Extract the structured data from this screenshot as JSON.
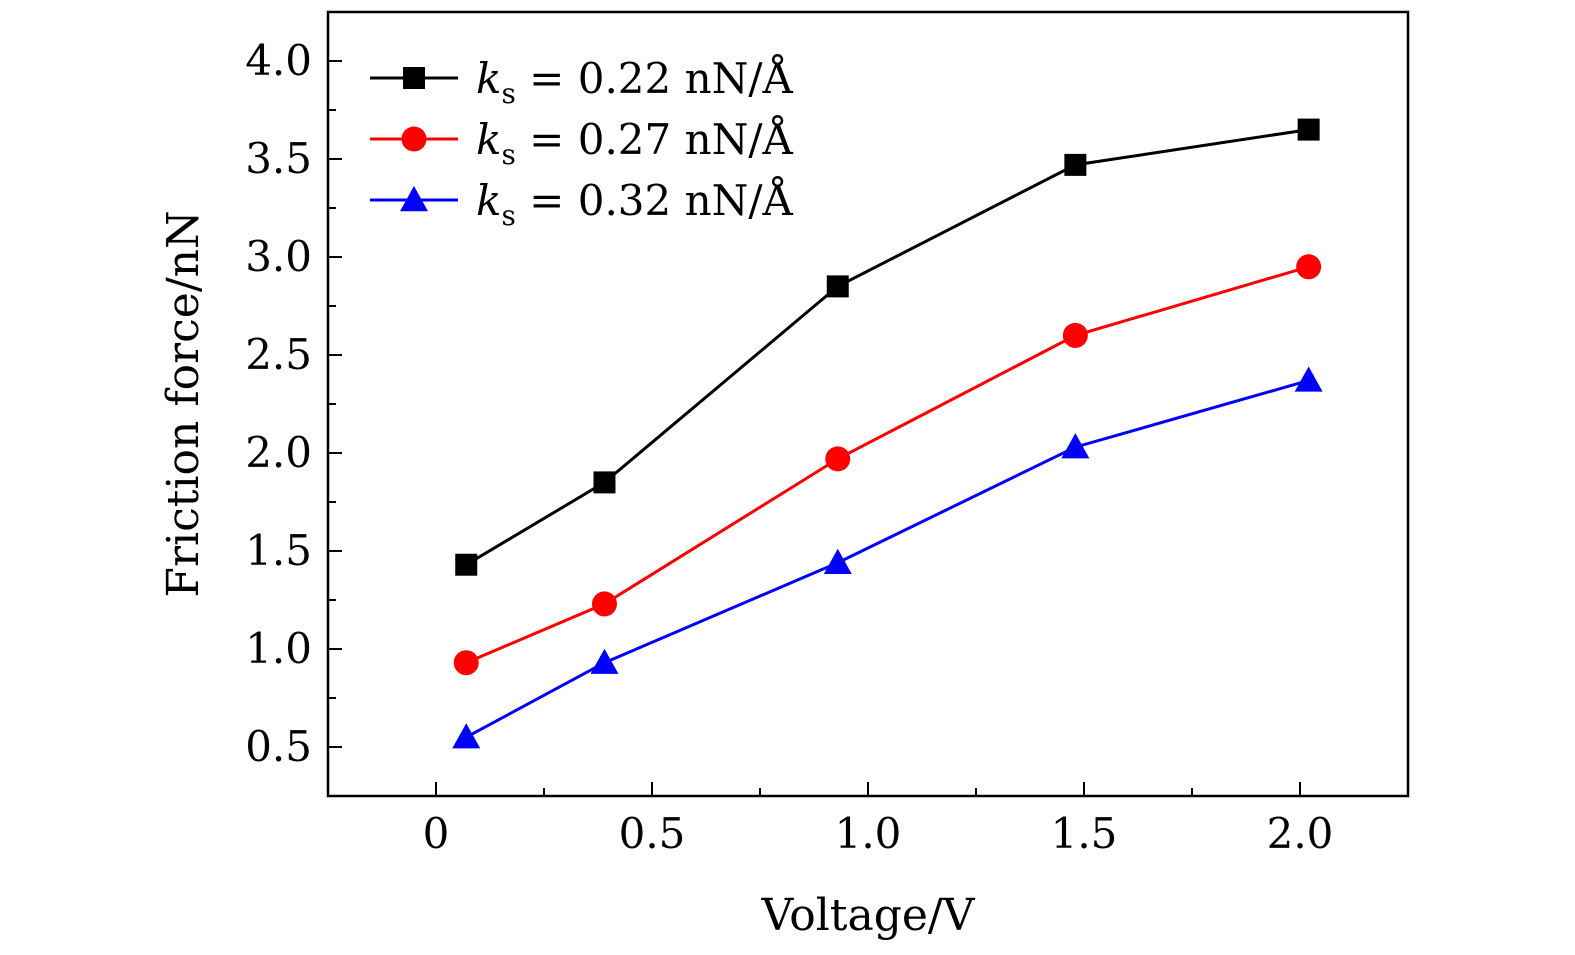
{
  "chart_data": {
    "type": "line",
    "xlabel": "Voltage/V",
    "ylabel": "Friction force/nN",
    "xlim": [
      -0.25,
      2.25
    ],
    "ylim": [
      0.25,
      4.25
    ],
    "xticks": [
      0,
      0.5,
      1.0,
      1.5,
      2.0
    ],
    "xtick_labels": [
      "0",
      "0.5",
      "1.0",
      "1.5",
      "2.0"
    ],
    "yticks": [
      0.5,
      1.0,
      1.5,
      2.0,
      2.5,
      3.0,
      3.5,
      4.0
    ],
    "ytick_labels": [
      "0.5",
      "1.0",
      "1.5",
      "2.0",
      "2.5",
      "3.0",
      "3.5",
      "4.0"
    ],
    "grid": false,
    "legend_position": "top-left",
    "series": [
      {
        "name": "k_s = 0.22 nN/Å",
        "legend_parts": {
          "k": "k",
          "sub": "s",
          "rest": " = 0.22 nN/Å"
        },
        "color": "#000000",
        "marker": "square",
        "x": [
          0.07,
          0.39,
          0.93,
          1.48,
          2.02
        ],
        "y": [
          1.43,
          1.85,
          2.85,
          3.47,
          3.65
        ]
      },
      {
        "name": "k_s = 0.27 nN/Å",
        "legend_parts": {
          "k": "k",
          "sub": "s",
          "rest": " = 0.27 nN/Å"
        },
        "color": "#ff0000",
        "marker": "circle",
        "x": [
          0.07,
          0.39,
          0.93,
          1.48,
          2.02
        ],
        "y": [
          0.93,
          1.23,
          1.97,
          2.6,
          2.95
        ]
      },
      {
        "name": "k_s = 0.32 nN/Å",
        "legend_parts": {
          "k": "k",
          "sub": "s",
          "rest": " = 0.32 nN/Å"
        },
        "color": "#0000ff",
        "marker": "triangle",
        "x": [
          0.07,
          0.39,
          0.93,
          1.48,
          2.02
        ],
        "y": [
          0.55,
          0.93,
          1.44,
          2.03,
          2.37
        ]
      }
    ]
  }
}
